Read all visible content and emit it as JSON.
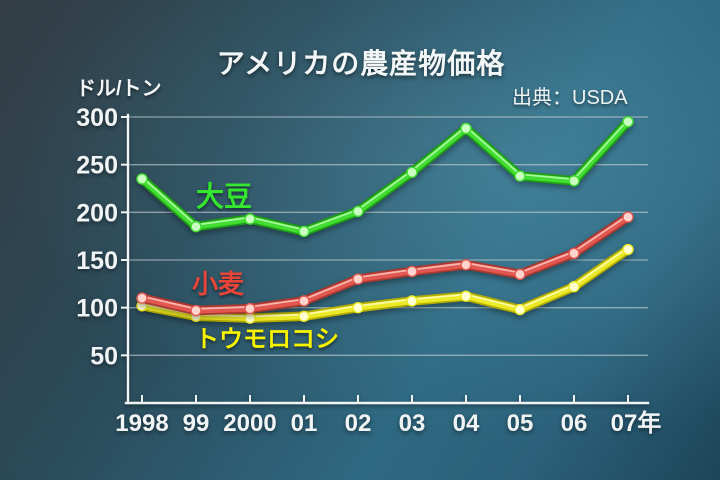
{
  "title": "アメリカの農産物価格",
  "unit_label": "ドル/トン",
  "source": "出典：USDA",
  "chart_data": {
    "type": "line",
    "title": "アメリカの農産物価格",
    "ylabel": "ドル/トン",
    "xlabel": "",
    "source": "出典：USDA",
    "x": [
      "1998",
      "99",
      "2000",
      "01",
      "02",
      "03",
      "04",
      "05",
      "06",
      "07年"
    ],
    "ylim": [
      0,
      300
    ],
    "yticks": [
      50,
      100,
      150,
      200,
      250,
      300
    ],
    "grid": true,
    "legend_position": "inline-labels",
    "series": [
      {
        "id": "soybean",
        "name": "大豆",
        "values": [
          235,
          185,
          193,
          180,
          201,
          242,
          288,
          238,
          233,
          295
        ],
        "colors": {
          "line": "#41dd30",
          "dark": "#1f9c16",
          "light": "#c9ffc0",
          "label": "#35e62e"
        }
      },
      {
        "id": "wheat",
        "name": "小麦",
        "values": [
          110,
          97,
          99,
          107,
          130,
          138,
          145,
          135,
          157,
          195
        ],
        "colors": {
          "line": "#e25850",
          "dark": "#a93830",
          "light": "#ffd4cd",
          "label": "#e8453a"
        }
      },
      {
        "id": "corn",
        "name": "トウモロコシ",
        "values": [
          102,
          91,
          89,
          91,
          100,
          107,
          112,
          98,
          122,
          161
        ],
        "colors": {
          "line": "#ece926",
          "dark": "#b3ac00",
          "light": "#ffffd2",
          "label": "#f6f200"
        }
      }
    ]
  }
}
